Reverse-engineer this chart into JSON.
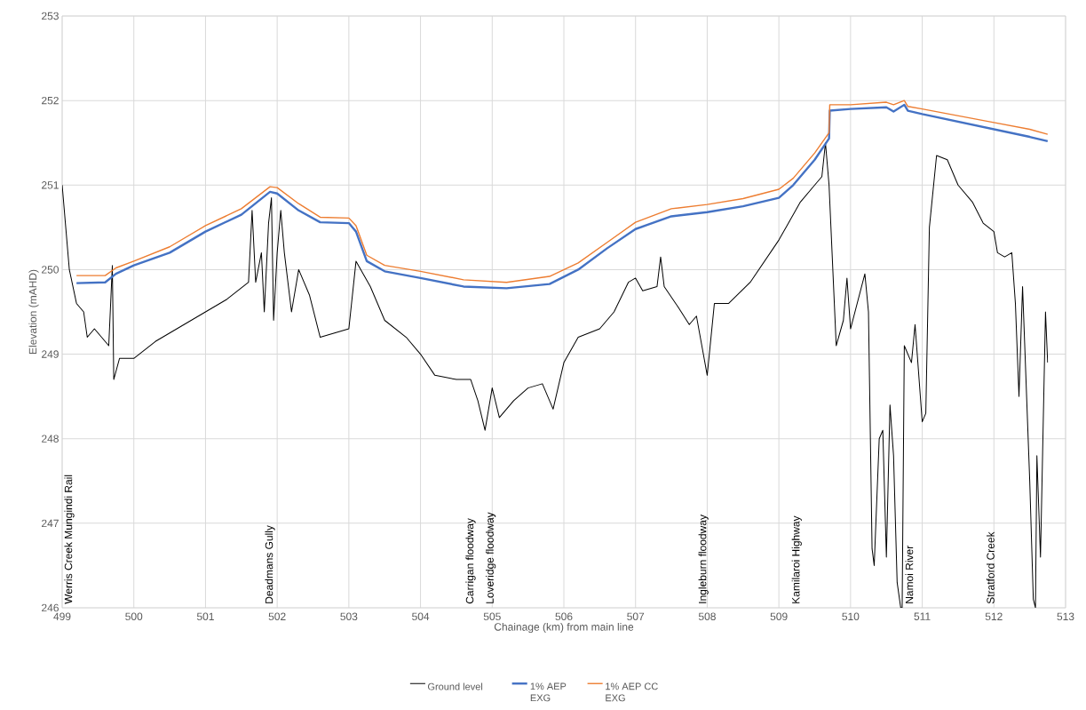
{
  "chart_data": {
    "type": "line",
    "xlabel": "Chainage (km) from main line",
    "ylabel": "Elevation (mAHD)",
    "xlim": [
      499,
      513
    ],
    "xticks": [
      499,
      500,
      501,
      502,
      503,
      504,
      505,
      506,
      507,
      508,
      509,
      510,
      511,
      512,
      513
    ],
    "ylim": [
      246,
      253
    ],
    "yticks": [
      246,
      247,
      248,
      249,
      250,
      251,
      252,
      253
    ],
    "grid": true,
    "legend": "bottom",
    "marker": "none",
    "line_style": "solid",
    "series": [
      {
        "name": "Ground level",
        "color": "#000000",
        "x": [
          499.0,
          499.05,
          499.1,
          499.2,
          499.3,
          499.35,
          499.45,
          499.55,
          499.65,
          499.7,
          499.72,
          499.8,
          500.0,
          500.3,
          500.6,
          501.0,
          501.3,
          501.6,
          501.65,
          501.7,
          501.78,
          501.82,
          501.88,
          501.92,
          501.95,
          502.0,
          502.05,
          502.1,
          502.2,
          502.3,
          502.45,
          502.6,
          502.8,
          503.0,
          503.1,
          503.3,
          503.5,
          503.8,
          504.0,
          504.2,
          504.5,
          504.7,
          504.8,
          504.9,
          505.0,
          505.1,
          505.3,
          505.5,
          505.7,
          505.85,
          506.0,
          506.2,
          506.5,
          506.7,
          506.9,
          507.0,
          507.1,
          507.3,
          507.35,
          507.4,
          507.6,
          507.75,
          507.85,
          508.0,
          508.1,
          508.3,
          508.6,
          509.0,
          509.3,
          509.5,
          509.6,
          509.65,
          509.7,
          509.8,
          509.9,
          509.95,
          510.0,
          510.2,
          510.25,
          510.3,
          510.33,
          510.4,
          510.45,
          510.5,
          510.55,
          510.6,
          510.65,
          510.7,
          510.72,
          510.75,
          510.85,
          510.9,
          511.0,
          511.05,
          511.1,
          511.2,
          511.35,
          511.5,
          511.7,
          511.85,
          512.0,
          512.05,
          512.15,
          512.25,
          512.3,
          512.35,
          512.4,
          512.5,
          512.55,
          512.58,
          512.6,
          512.65,
          512.72,
          512.75
        ],
        "values": [
          251.0,
          250.5,
          250.0,
          249.6,
          249.5,
          249.2,
          249.3,
          249.2,
          249.1,
          250.05,
          248.7,
          248.95,
          248.95,
          249.15,
          249.3,
          249.5,
          249.65,
          249.85,
          250.7,
          249.85,
          250.2,
          249.5,
          250.55,
          250.85,
          249.4,
          250.2,
          250.7,
          250.2,
          249.5,
          250.0,
          249.7,
          249.2,
          249.25,
          249.3,
          250.1,
          249.8,
          249.4,
          249.2,
          249.0,
          248.75,
          248.7,
          248.7,
          248.45,
          248.1,
          248.6,
          248.25,
          248.45,
          248.6,
          248.65,
          248.35,
          248.9,
          249.2,
          249.3,
          249.5,
          249.85,
          249.9,
          249.75,
          249.8,
          250.15,
          249.8,
          249.55,
          249.35,
          249.45,
          248.75,
          249.6,
          249.6,
          249.85,
          250.35,
          250.8,
          251.0,
          251.1,
          251.5,
          251.0,
          249.1,
          249.4,
          249.9,
          249.3,
          249.95,
          249.5,
          246.7,
          246.5,
          248.0,
          248.1,
          246.6,
          248.4,
          247.8,
          246.3,
          246.0,
          246.0,
          249.1,
          248.9,
          249.35,
          248.2,
          248.3,
          250.5,
          251.35,
          251.3,
          251.0,
          250.8,
          250.55,
          250.45,
          250.2,
          250.15,
          250.2,
          249.6,
          248.5,
          249.8,
          247.5,
          246.1,
          246.0,
          247.8,
          246.6,
          249.5,
          248.9
        ]
      },
      {
        "name": "1% AEP EXG",
        "color": "#4472c4",
        "x": [
          499.2,
          499.6,
          499.75,
          500.0,
          500.5,
          501.0,
          501.5,
          501.9,
          502.0,
          502.3,
          502.6,
          503.0,
          503.1,
          503.25,
          503.5,
          504.0,
          504.6,
          505.2,
          505.8,
          506.2,
          506.6,
          507.0,
          507.5,
          508.0,
          508.5,
          509.0,
          509.2,
          509.5,
          509.7,
          509.71,
          510.0,
          510.5,
          510.6,
          510.75,
          510.8,
          511.0,
          511.5,
          512.0,
          512.5,
          512.75
        ],
        "values": [
          249.84,
          249.85,
          249.95,
          250.05,
          250.2,
          250.45,
          250.65,
          250.92,
          250.9,
          250.7,
          250.56,
          250.55,
          250.45,
          250.1,
          249.98,
          249.9,
          249.8,
          249.78,
          249.83,
          250.0,
          250.25,
          250.48,
          250.63,
          250.68,
          250.75,
          250.85,
          251.0,
          251.3,
          251.55,
          251.88,
          251.9,
          251.92,
          251.87,
          251.95,
          251.88,
          251.84,
          251.75,
          251.66,
          251.57,
          251.52
        ]
      },
      {
        "name": "1% AEP CC EXG",
        "color": "#ed7d31",
        "x": [
          499.2,
          499.6,
          499.75,
          500.0,
          500.5,
          501.0,
          501.5,
          501.9,
          502.0,
          502.3,
          502.6,
          503.0,
          503.1,
          503.25,
          503.5,
          504.0,
          504.6,
          505.2,
          505.8,
          506.2,
          506.6,
          507.0,
          507.5,
          508.0,
          508.5,
          509.0,
          509.2,
          509.5,
          509.7,
          509.71,
          510.0,
          510.5,
          510.6,
          510.75,
          510.8,
          511.0,
          511.5,
          512.0,
          512.5,
          512.75
        ],
        "values": [
          249.93,
          249.93,
          250.02,
          250.1,
          250.27,
          250.52,
          250.72,
          250.98,
          250.97,
          250.78,
          250.62,
          250.61,
          250.52,
          250.17,
          250.05,
          249.98,
          249.88,
          249.85,
          249.92,
          250.08,
          250.32,
          250.56,
          250.72,
          250.77,
          250.84,
          250.95,
          251.08,
          251.38,
          251.62,
          251.95,
          251.95,
          251.98,
          251.95,
          252.0,
          251.93,
          251.9,
          251.82,
          251.74,
          251.66,
          251.6
        ]
      }
    ],
    "annotations": [
      "Werris Creek Mungindi Rail",
      "Deadmans Gully",
      "Carrigan floodway",
      "Loveridge floodway",
      "Ingleburn floodway",
      "Kamilaroi Highway",
      "Namoi River",
      "Stratford Creek"
    ]
  }
}
